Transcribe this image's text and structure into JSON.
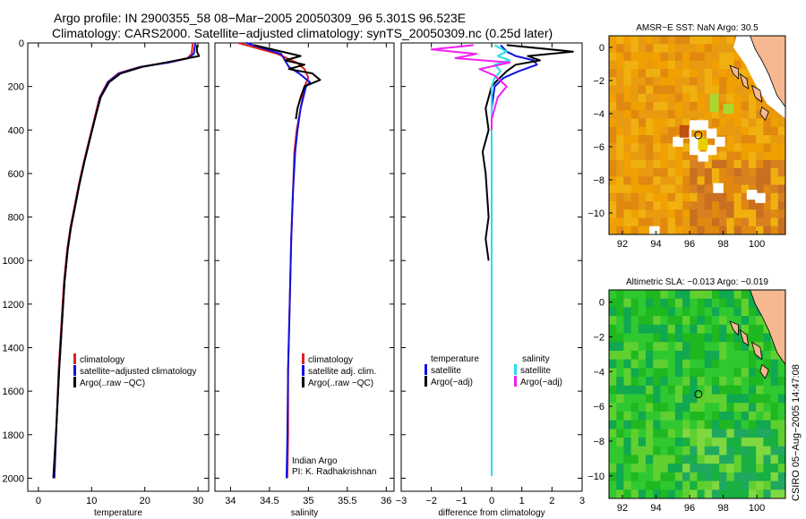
{
  "header": {
    "title_line1": "Argo profile: IN 2900355_58 08−Mar−2005 20050309_96 5.301S 96.523E",
    "title_line2": "Climatology: CARS2000. Satellite−adjusted climatology: synTS_20050309.nc (0.25d later)"
  },
  "footer": {
    "credit": "CSIRO 05−Aug−2005 14:47:08"
  },
  "colors": {
    "red": "#e02020",
    "blue": "#1010e0",
    "black": "#000000",
    "cyan": "#20e0f0",
    "magenta": "#f020f0",
    "sst_bg": "#f0a000",
    "sla_bg": "#20b820",
    "land": "#f5b890"
  },
  "chart_data": [
    {
      "type": "line",
      "id": "temperature",
      "xlabel": "temperature",
      "xlim": [
        -2,
        32
      ],
      "ylim": [
        2060,
        0
      ],
      "x_ticks": [
        0,
        10,
        20,
        30
      ],
      "y_ticks": [
        0,
        200,
        400,
        600,
        800,
        1000,
        1200,
        1400,
        1600,
        1800,
        2000
      ],
      "legend": [
        "climatology",
        "satellite−adjusted climatology",
        "Argo(..raw −QC)"
      ],
      "series": [
        {
          "name": "climatology",
          "color": "#e02020",
          "x": [
            29.0,
            28.8,
            28.0,
            24.0,
            19.0,
            15.0,
            13.0,
            11.5,
            10.5,
            9.5,
            8.5,
            7.6,
            6.8,
            6.0,
            5.4,
            4.8,
            4.3,
            3.8,
            3.4,
            3.0
          ],
          "y": [
            0,
            50,
            70,
            90,
            110,
            140,
            180,
            250,
            350,
            450,
            550,
            650,
            750,
            850,
            950,
            1100,
            1300,
            1500,
            1750,
            2000
          ]
        },
        {
          "name": "satellite−adjusted climatology",
          "color": "#1010e0",
          "x": [
            29.5,
            29.2,
            28.2,
            24.5,
            19.2,
            15.2,
            13.1,
            11.6,
            10.6,
            9.6,
            8.6,
            7.7,
            6.9,
            6.1,
            5.5,
            4.9,
            4.4,
            3.9,
            3.4,
            3.0
          ],
          "y": [
            0,
            50,
            70,
            90,
            110,
            140,
            180,
            250,
            350,
            450,
            550,
            650,
            750,
            850,
            950,
            1100,
            1300,
            1500,
            1750,
            2000
          ]
        },
        {
          "name": "Argo(..raw −QC)",
          "color": "#000000",
          "x": [
            29.8,
            29.8,
            30.2,
            25.0,
            19.5,
            15.5,
            13.3,
            11.7,
            10.6,
            9.6,
            8.6,
            7.7,
            6.9,
            6.1,
            5.5,
            4.9,
            4.4,
            3.9,
            3.4,
            2.8
          ],
          "y": [
            10,
            40,
            60,
            85,
            110,
            140,
            180,
            250,
            350,
            450,
            550,
            650,
            750,
            850,
            950,
            1100,
            1300,
            1500,
            1750,
            2000
          ]
        }
      ]
    },
    {
      "type": "line",
      "id": "salinity",
      "xlabel": "salinity",
      "xlim": [
        33.8,
        36.1
      ],
      "ylim": [
        2060,
        0
      ],
      "x_ticks": [
        34,
        34.5,
        35,
        35.5,
        36
      ],
      "x_tick_labels": [
        "34",
        "34.5",
        "35",
        "35.5",
        "36"
      ],
      "legend": [
        "climatology",
        "satellite adj. clim.",
        "Argo(..raw −QC)"
      ],
      "annotation": [
        "Indian Argo",
        "PI: K. Radhakrishnan"
      ],
      "series": [
        {
          "name": "climatology",
          "color": "#e02020",
          "x": [
            34.1,
            34.6,
            34.85,
            34.95,
            35.0,
            34.95,
            34.9,
            34.85,
            34.82,
            34.8,
            34.78,
            34.76,
            34.74,
            34.74,
            34.73
          ],
          "y": [
            0,
            50,
            90,
            120,
            160,
            200,
            300,
            400,
            500,
            700,
            900,
            1200,
            1500,
            1800,
            2000
          ]
        },
        {
          "name": "satellite adj. clim.",
          "color": "#1010e0",
          "x": [
            34.2,
            34.65,
            34.75,
            34.88,
            35.02,
            34.97,
            34.9,
            34.86,
            34.83,
            34.8,
            34.78,
            34.76,
            34.74,
            34.73,
            34.72
          ],
          "y": [
            0,
            50,
            110,
            140,
            180,
            200,
            300,
            400,
            500,
            700,
            900,
            1200,
            1500,
            1800,
            2000
          ]
        },
        {
          "name": "Argo(..raw −QC)",
          "color": "#000000",
          "x": [
            34.3,
            34.9,
            34.7,
            34.95,
            34.75,
            35.05,
            35.15,
            34.95,
            34.9,
            34.86,
            34.84
          ],
          "y": [
            10,
            60,
            80,
            100,
            120,
            140,
            170,
            200,
            250,
            300,
            350
          ]
        }
      ]
    },
    {
      "type": "line",
      "id": "difference",
      "xlabel": "difference from climatology",
      "xlim": [
        -3,
        3
      ],
      "ylim": [
        2060,
        0
      ],
      "x_ticks": [
        -3,
        -2,
        -1,
        0,
        1,
        2,
        3
      ],
      "x_tick_labels": [
        "−3",
        "−2",
        "−1",
        "0",
        "1",
        "2",
        "3"
      ],
      "legend_left_title": "temperature",
      "legend_right_title": "salinity",
      "legend_left": [
        "satellite",
        "Argo(−adj)"
      ],
      "legend_right": [
        "satellite",
        "Argo(−adj)"
      ],
      "series": [
        {
          "name": "temperature satellite",
          "color": "#1010e0",
          "x": [
            0.3,
            0.5,
            0.8,
            1.4,
            1.5,
            0.9,
            0.4,
            0.1,
            0.0,
            0.0,
            0.0,
            0.0,
            0.0,
            0.0,
            0.0
          ],
          "y": [
            10,
            40,
            60,
            80,
            100,
            130,
            160,
            200,
            300,
            500,
            800,
            1100,
            1400,
            1700,
            1990
          ]
        },
        {
          "name": "temperature Argo(−adj)",
          "color": "#000000",
          "x": [
            0.5,
            2.7,
            1.2,
            1.6,
            0.8,
            0.5,
            0.2,
            0.0,
            -0.2,
            -0.1,
            -0.3,
            -0.2,
            -0.1,
            -0.2,
            -0.1
          ],
          "y": [
            10,
            40,
            60,
            80,
            100,
            130,
            170,
            200,
            300,
            400,
            500,
            600,
            800,
            900,
            1000
          ]
        },
        {
          "name": "salinity satellite",
          "color": "#20e0f0",
          "x": [
            0.1,
            0.5,
            0.2,
            0.6,
            0.1,
            0.3,
            0.1,
            0.0,
            0.0,
            0.0,
            0.0,
            0.0,
            0.0,
            0.0
          ],
          "y": [
            10,
            40,
            60,
            80,
            100,
            130,
            160,
            200,
            300,
            500,
            800,
            1100,
            1400,
            1990
          ]
        },
        {
          "name": "salinity Argo(−adj)",
          "color": "#f020f0",
          "x": [
            -0.6,
            -2.0,
            -0.5,
            -1.2,
            0.6,
            -0.4,
            0.1,
            0.5,
            0.2,
            0.1,
            0.0,
            0.0
          ],
          "y": [
            10,
            30,
            50,
            70,
            90,
            120,
            150,
            200,
            250,
            300,
            350,
            400
          ]
        }
      ]
    },
    {
      "type": "heatmap",
      "id": "sst_map",
      "title": "AMSR−E SST: NaN Argo: 30.5",
      "xlim": [
        91.2,
        101.7
      ],
      "ylim": [
        -11.3,
        0.7
      ],
      "x_ticks": [
        92,
        94,
        96,
        98,
        100
      ],
      "y_ticks": [
        0,
        -2,
        -4,
        -6,
        -8,
        -10
      ],
      "y_tick_labels": [
        "0",
        "−2",
        "−4",
        "−6",
        "−8",
        "−10"
      ],
      "marker": {
        "lon": 96.52,
        "lat": -5.3
      }
    },
    {
      "type": "heatmap",
      "id": "sla_map",
      "title": "Altimetric SLA: −0.013 Argo: −0.019",
      "xlim": [
        91.2,
        101.7
      ],
      "ylim": [
        -11.3,
        0.7
      ],
      "x_ticks": [
        92,
        94,
        96,
        98,
        100
      ],
      "y_ticks": [
        0,
        -2,
        -4,
        -6,
        -8,
        -10
      ],
      "y_tick_labels": [
        "0",
        "−2",
        "−4",
        "−6",
        "−8",
        "−10"
      ],
      "marker": {
        "lon": 96.52,
        "lat": -5.3
      }
    }
  ]
}
